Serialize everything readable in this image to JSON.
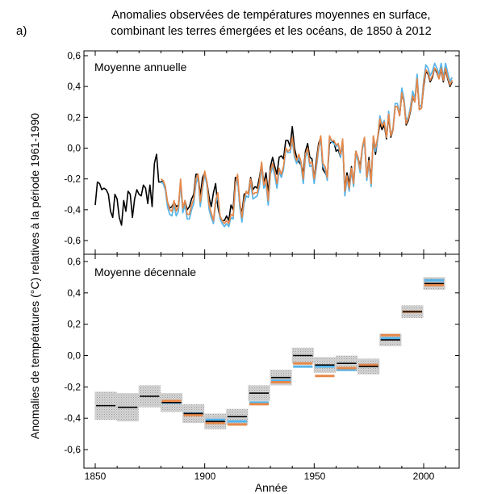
{
  "figure": {
    "panel_letter": "a)",
    "title_line1": "Anomalies observées de températures moyennes en surface,",
    "title_line2": "combinant les terres émergées et les océans, de 1850 à 2012",
    "ylabel": "Anomalies de températures (°C) relatives à la période 1961-1990",
    "xlabel": "Année",
    "xticks": [
      "1850",
      "1900",
      "1950",
      "2000"
    ],
    "colors": {
      "black": "#000000",
      "blue": "#56b4e9",
      "orange": "#e6884a",
      "band": "#c9c9c9"
    }
  },
  "chart_data": [
    {
      "type": "line",
      "title": "Moyenne annuelle",
      "xlabel": "Année",
      "ylabel": "Anomalies de températures (°C)",
      "xlim": [
        1845,
        2015
      ],
      "ylim": [
        -0.7,
        0.6
      ],
      "ytick_values": [
        -0.6,
        -0.4,
        -0.2,
        0.0,
        0.2,
        0.4,
        0.6
      ],
      "ytick_labels": [
        "-0,6",
        "-0,4",
        "-0,2",
        "0,0",
        "0,2",
        "0,4",
        "0,6"
      ],
      "series": [
        {
          "name": "black",
          "color": "#000000",
          "start_year": 1850,
          "values": [
            -0.37,
            -0.22,
            -0.23,
            -0.27,
            -0.26,
            -0.27,
            -0.3,
            -0.41,
            -0.45,
            -0.3,
            -0.33,
            -0.45,
            -0.5,
            -0.34,
            -0.41,
            -0.28,
            -0.3,
            -0.45,
            -0.33,
            -0.27,
            -0.3,
            -0.31,
            -0.24,
            -0.26,
            -0.36,
            -0.24,
            -0.38,
            -0.1,
            -0.04,
            -0.22,
            -0.22,
            -0.21,
            -0.25,
            -0.35,
            -0.39,
            -0.38,
            -0.35,
            -0.38,
            -0.37,
            -0.23,
            -0.4,
            -0.34,
            -0.4,
            -0.38,
            -0.33,
            -0.3,
            -0.17,
            -0.17,
            -0.31,
            -0.19,
            -0.16,
            -0.22,
            -0.32,
            -0.38,
            -0.29,
            -0.23,
            -0.38,
            -0.45,
            -0.47,
            -0.47,
            -0.44,
            -0.47,
            -0.37,
            -0.4,
            -0.19,
            -0.2,
            -0.37,
            -0.42,
            -0.3,
            -0.29,
            -0.29,
            -0.19,
            -0.27,
            -0.25,
            -0.26,
            -0.19,
            -0.1,
            -0.23,
            -0.16,
            -0.29,
            -0.12,
            -0.06,
            -0.12,
            -0.17,
            -0.06,
            -0.05,
            -0.07,
            0.05,
            0.05,
            0.01,
            0.14,
            0.0,
            -0.06,
            -0.09,
            -0.11,
            -0.16,
            -0.02,
            0.03,
            -0.06,
            -0.07,
            -0.2,
            -0.08,
            0.03,
            0.07,
            -0.14,
            -0.16,
            -0.19,
            0.03,
            0.04,
            0.04,
            -0.02,
            -0.01,
            -0.06,
            0.04,
            -0.27,
            -0.16,
            -0.23,
            -0.12,
            -0.23,
            -0.02,
            -0.06,
            -0.12,
            0.0,
            0.05,
            -0.2,
            -0.06,
            -0.22,
            0.07,
            -0.04,
            0.06,
            0.16,
            0.12,
            0.15,
            0.06,
            0.21,
            0.07,
            0.12,
            0.27,
            0.27,
            0.21,
            0.35,
            0.3,
            0.15,
            0.18,
            0.24,
            0.33,
            0.3,
            0.45,
            0.25,
            0.26,
            0.4,
            0.5,
            0.48,
            0.43,
            0.46,
            0.52,
            0.49,
            0.45,
            0.51,
            0.43,
            0.51,
            0.45,
            0.4,
            0.43
          ]
        },
        {
          "name": "blue",
          "color": "#56b4e9",
          "start_year": 1880,
          "values": [
            -0.22,
            -0.23,
            -0.27,
            -0.38,
            -0.43,
            -0.44,
            -0.37,
            -0.44,
            -0.41,
            -0.22,
            -0.42,
            -0.37,
            -0.46,
            -0.46,
            -0.4,
            -0.36,
            -0.23,
            -0.19,
            -0.38,
            -0.26,
            -0.17,
            -0.24,
            -0.4,
            -0.45,
            -0.49,
            -0.36,
            -0.31,
            -0.46,
            -0.49,
            -0.51,
            -0.49,
            -0.51,
            -0.45,
            -0.46,
            -0.25,
            -0.19,
            -0.38,
            -0.48,
            -0.36,
            -0.31,
            -0.32,
            -0.22,
            -0.33,
            -0.32,
            -0.31,
            -0.25,
            -0.12,
            -0.26,
            -0.23,
            -0.37,
            -0.17,
            -0.12,
            -0.18,
            -0.26,
            -0.15,
            -0.19,
            -0.14,
            -0.01,
            -0.03,
            -0.03,
            0.05,
            -0.06,
            -0.1,
            -0.06,
            -0.11,
            -0.23,
            -0.06,
            -0.02,
            -0.12,
            -0.11,
            -0.23,
            -0.13,
            -0.01,
            0.07,
            -0.12,
            -0.14,
            -0.21,
            0.07,
            0.04,
            0.03,
            0.01,
            0.02,
            -0.06,
            0.05,
            -0.31,
            -0.2,
            -0.28,
            -0.15,
            -0.25,
            -0.04,
            -0.08,
            -0.16,
            -0.01,
            0.06,
            -0.21,
            -0.1,
            -0.25,
            0.07,
            -0.02,
            0.06,
            0.21,
            0.15,
            0.18,
            0.07,
            0.24,
            0.08,
            0.13,
            0.29,
            0.29,
            0.22,
            0.39,
            0.32,
            0.18,
            0.2,
            0.27,
            0.37,
            0.32,
            0.48,
            0.27,
            0.28,
            0.44,
            0.54,
            0.52,
            0.47,
            0.5,
            0.55,
            0.52,
            0.48,
            0.55,
            0.46,
            0.55,
            0.49,
            0.43,
            0.46
          ]
        },
        {
          "name": "orange",
          "color": "#e6884a",
          "start_year": 1880,
          "values": [
            -0.2,
            -0.21,
            -0.25,
            -0.35,
            -0.4,
            -0.41,
            -0.34,
            -0.41,
            -0.38,
            -0.2,
            -0.39,
            -0.34,
            -0.43,
            -0.43,
            -0.37,
            -0.33,
            -0.2,
            -0.17,
            -0.35,
            -0.24,
            -0.15,
            -0.22,
            -0.37,
            -0.42,
            -0.47,
            -0.34,
            -0.29,
            -0.44,
            -0.47,
            -0.49,
            -0.47,
            -0.49,
            -0.43,
            -0.44,
            -0.23,
            -0.17,
            -0.35,
            -0.45,
            -0.33,
            -0.28,
            -0.3,
            -0.2,
            -0.3,
            -0.29,
            -0.29,
            -0.22,
            -0.09,
            -0.24,
            -0.2,
            -0.34,
            -0.15,
            -0.1,
            -0.15,
            -0.23,
            -0.13,
            -0.17,
            -0.12,
            0.0,
            -0.02,
            -0.01,
            0.07,
            -0.04,
            -0.08,
            -0.04,
            -0.09,
            -0.2,
            -0.04,
            0.0,
            -0.1,
            -0.09,
            -0.2,
            -0.11,
            0.01,
            0.08,
            -0.1,
            -0.12,
            -0.19,
            0.08,
            0.05,
            0.05,
            0.02,
            0.03,
            -0.04,
            0.06,
            -0.28,
            -0.18,
            -0.26,
            -0.13,
            -0.23,
            -0.02,
            -0.06,
            -0.14,
            0.01,
            0.07,
            -0.19,
            -0.08,
            -0.23,
            0.08,
            0.0,
            0.07,
            0.19,
            0.14,
            0.17,
            0.07,
            0.22,
            0.08,
            0.12,
            0.27,
            0.27,
            0.21,
            0.36,
            0.3,
            0.16,
            0.19,
            0.25,
            0.34,
            0.3,
            0.45,
            0.25,
            0.26,
            0.42,
            0.51,
            0.49,
            0.44,
            0.47,
            0.52,
            0.5,
            0.45,
            0.52,
            0.44,
            0.52,
            0.46,
            0.41,
            0.44
          ]
        }
      ]
    },
    {
      "type": "bar",
      "title": "Moyenne décennale",
      "xlabel": "Année",
      "ylabel": "Anomalies de températures (°C)",
      "xlim": [
        1845,
        2015
      ],
      "ylim": [
        -0.7,
        0.65
      ],
      "ytick_values": [
        -0.6,
        -0.4,
        -0.2,
        0.0,
        0.2,
        0.4,
        0.6
      ],
      "ytick_labels": [
        "-0,6",
        "-0,4",
        "-0,2",
        "0,0",
        "0,2",
        "0,4",
        "0,6"
      ],
      "decade_starts": [
        1850,
        1860,
        1870,
        1880,
        1890,
        1900,
        1910,
        1920,
        1930,
        1940,
        1950,
        1960,
        1970,
        1980,
        1990,
        2000
      ],
      "series": [
        {
          "name": "black",
          "color": "#000000",
          "values": [
            -0.32,
            -0.33,
            -0.26,
            -0.3,
            -0.37,
            -0.42,
            -0.39,
            -0.24,
            -0.14,
            0.0,
            -0.06,
            -0.05,
            -0.07,
            0.1,
            0.28,
            0.46
          ]
        },
        {
          "name": "blue",
          "color": "#56b4e9",
          "values": [
            null,
            null,
            null,
            -0.3,
            -0.37,
            -0.41,
            -0.42,
            -0.3,
            -0.16,
            -0.07,
            -0.07,
            -0.09,
            -0.06,
            0.11,
            0.28,
            0.48
          ]
        },
        {
          "name": "orange",
          "color": "#e6884a",
          "values": [
            null,
            null,
            null,
            -0.29,
            -0.38,
            -0.43,
            -0.44,
            -0.31,
            -0.17,
            -0.05,
            -0.13,
            -0.08,
            -0.06,
            0.13,
            0.28,
            0.45
          ]
        },
        {
          "name": "uncertainty",
          "color": "#c9c9c9",
          "half_widths": [
            0.09,
            0.09,
            0.07,
            0.06,
            0.06,
            0.05,
            0.05,
            0.05,
            0.05,
            0.05,
            0.05,
            0.05,
            0.05,
            0.04,
            0.04,
            0.04
          ]
        }
      ]
    }
  ]
}
